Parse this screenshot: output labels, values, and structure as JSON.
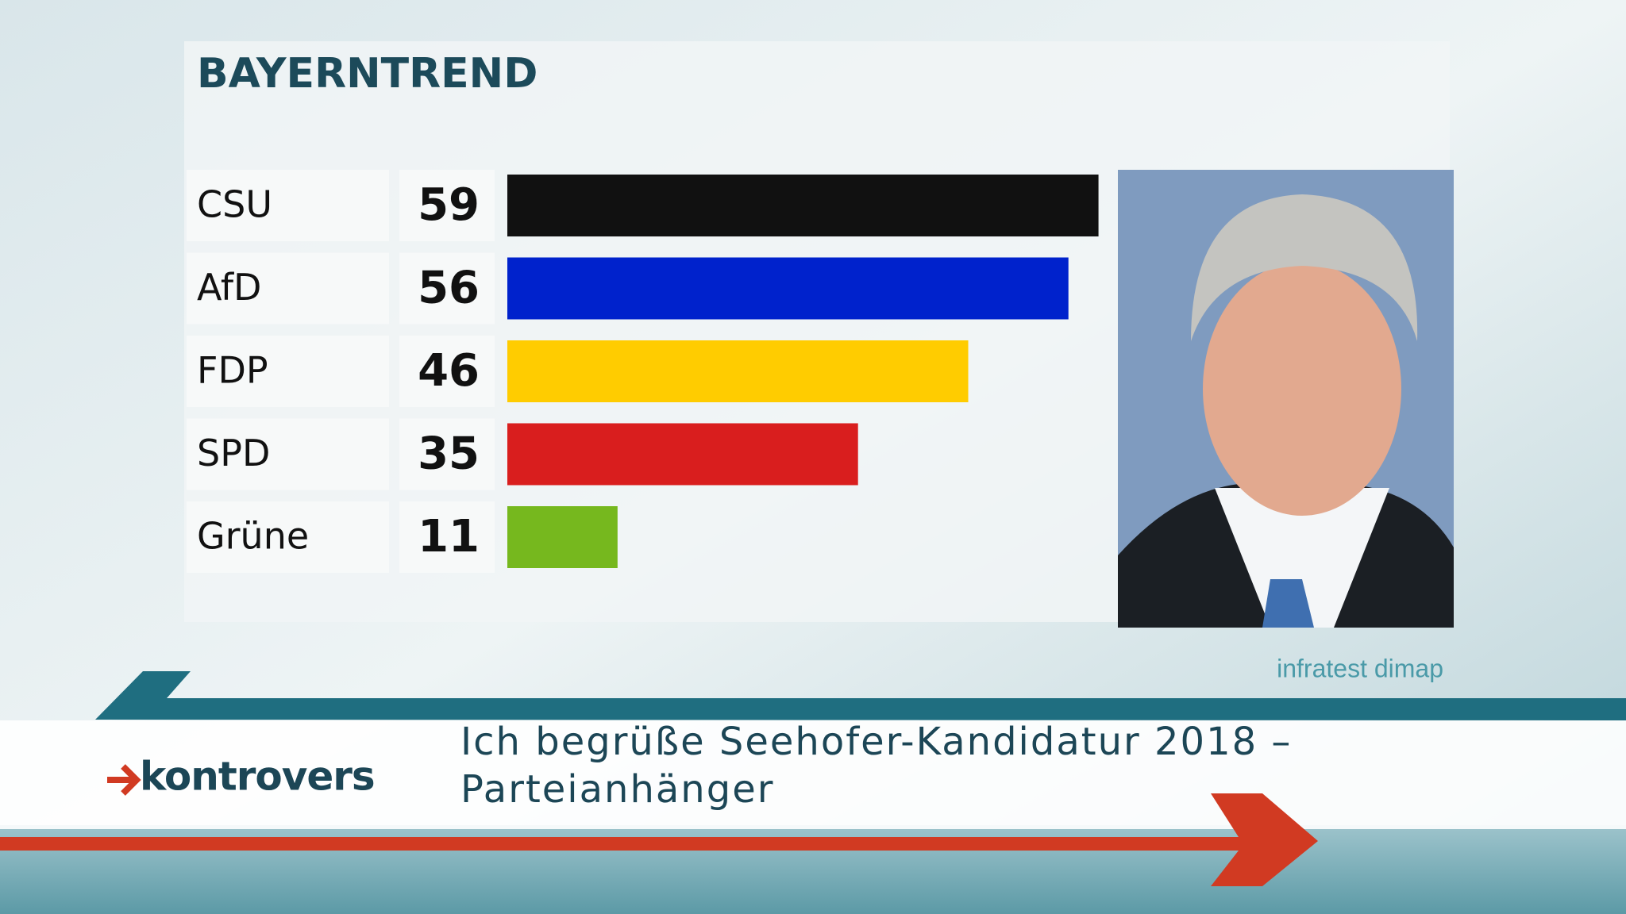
{
  "chart_data": {
    "type": "hbar",
    "title": "BAYERNTREND",
    "categories": [
      "CSU",
      "AfD",
      "FDP",
      "SPD",
      "Grüne"
    ],
    "values": [
      59,
      56,
      46,
      35,
      11
    ],
    "colors": [
      "#111111",
      "#0022cc",
      "#ffcc00",
      "#d91e1e",
      "#76b81e"
    ],
    "source": "infratest dimap",
    "caption": "Ich begrüße Seehofer-Kandidatur 2018 – Parteianhänger",
    "brand": "kontrovers"
  }
}
